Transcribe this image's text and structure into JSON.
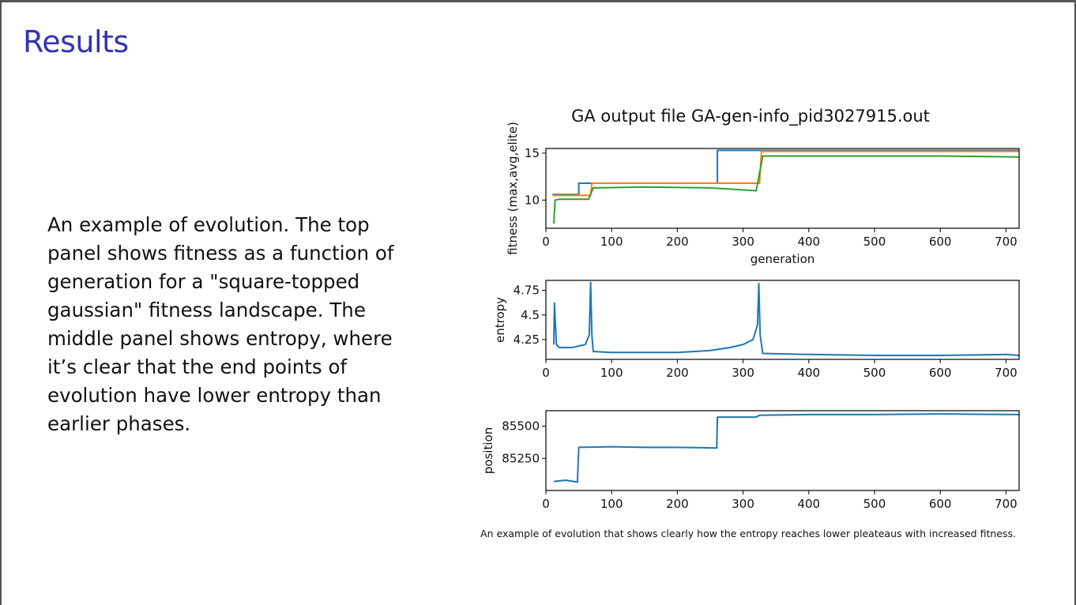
{
  "slide": {
    "title": "Results",
    "body": "An example of evolution.  The top panel shows fitness as a function of generation for a \"square-topped gaussian\" fitness landscape.  The middle panel shows entropy, where it’s clear that the end points of evolution have lower entropy than earlier phases."
  },
  "figure": {
    "title": "GA output file GA-gen-info_pid3027915.out",
    "caption": "An example of evolution that shows clearly how the entropy reaches lower pleateaus with increased fitness."
  },
  "colors": {
    "blue": "#1f77b4",
    "orange": "#ff7f0e",
    "green": "#2ca02c",
    "title": "#3333b3"
  },
  "chart_data": [
    {
      "type": "line",
      "xlabel": "generation",
      "ylabel": "fitness (max,avg,elite)",
      "xlim": [
        0,
        720
      ],
      "ylim": [
        7,
        15.5
      ],
      "xticks": [
        0,
        100,
        200,
        300,
        400,
        500,
        600,
        700
      ],
      "yticks": [
        10,
        15
      ],
      "series": [
        {
          "color": "#1f77b4",
          "x": [
            10,
            50,
            50,
            261,
            261,
            720
          ],
          "y": [
            10.6,
            10.6,
            11.8,
            11.8,
            15.3,
            15.3
          ]
        },
        {
          "color": "#ff7f0e",
          "x": [
            10,
            68,
            70,
            325,
            328,
            720
          ],
          "y": [
            10.5,
            10.5,
            11.8,
            11.8,
            15.2,
            15.2
          ]
        },
        {
          "color": "#2ca02c",
          "x": [
            12,
            14,
            20,
            65,
            72,
            150,
            250,
            320,
            330,
            400,
            500,
            600,
            720
          ],
          "y": [
            7.5,
            10.0,
            10.1,
            10.1,
            11.3,
            11.4,
            11.3,
            11.0,
            14.7,
            14.7,
            14.7,
            14.7,
            14.6
          ]
        }
      ]
    },
    {
      "type": "line",
      "ylabel": "entropy",
      "xlim": [
        0,
        720
      ],
      "ylim": [
        4.05,
        4.85
      ],
      "xticks": [
        0,
        100,
        200,
        300,
        400,
        500,
        600,
        700
      ],
      "yticks": [
        4.25,
        4.5,
        4.75
      ],
      "series": [
        {
          "color": "#1f77b4",
          "x": [
            12,
            13,
            16,
            20,
            40,
            60,
            66,
            68,
            70,
            72,
            100,
            150,
            200,
            250,
            280,
            300,
            315,
            322,
            324,
            326,
            330,
            400,
            500,
            600,
            700,
            720
          ],
          "y": [
            4.2,
            4.62,
            4.2,
            4.17,
            4.17,
            4.2,
            4.3,
            4.83,
            4.3,
            4.13,
            4.12,
            4.12,
            4.12,
            4.14,
            4.17,
            4.2,
            4.25,
            4.4,
            4.82,
            4.3,
            4.11,
            4.1,
            4.09,
            4.09,
            4.1,
            4.09
          ]
        }
      ]
    },
    {
      "type": "line",
      "ylabel": "position",
      "xlim": [
        0,
        720
      ],
      "ylim": [
        85000,
        85620
      ],
      "xticks": [
        0,
        100,
        200,
        300,
        400,
        500,
        600,
        700
      ],
      "yticks": [
        85250,
        85500
      ],
      "series": [
        {
          "color": "#1f77b4",
          "x": [
            12,
            30,
            48,
            50,
            100,
            150,
            200,
            260,
            261,
            320,
            325,
            400,
            500,
            600,
            720
          ],
          "y": [
            85070,
            85080,
            85065,
            85335,
            85340,
            85335,
            85335,
            85330,
            85570,
            85570,
            85585,
            85590,
            85590,
            85595,
            85590
          ]
        }
      ]
    }
  ]
}
